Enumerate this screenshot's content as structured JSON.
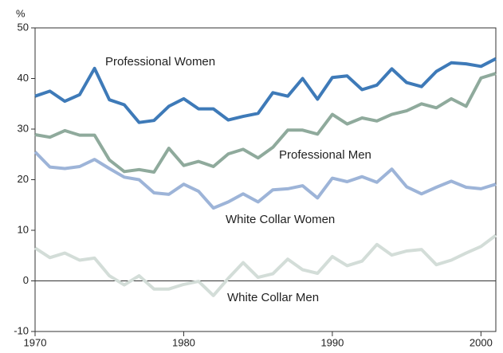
{
  "chart_data": {
    "type": "line",
    "ylabel": "%",
    "x": [
      1970,
      1971,
      1972,
      1973,
      1974,
      1975,
      1976,
      1977,
      1978,
      1979,
      1980,
      1981,
      1982,
      1983,
      1984,
      1985,
      1986,
      1987,
      1988,
      1989,
      1990,
      1991,
      1992,
      1993,
      1994,
      1995,
      1996,
      1997,
      1998,
      1999,
      2000,
      2001
    ],
    "series": [
      {
        "name": "Professional Women",
        "color": "#3e7ab8",
        "values": [
          36.5,
          37.5,
          35.5,
          36.8,
          42,
          35.8,
          34.8,
          31.3,
          31.7,
          34.5,
          36,
          34,
          34,
          31.8,
          32.5,
          33.1,
          37.2,
          36.5,
          40,
          35.9,
          40.2,
          40.5,
          37.8,
          38.7,
          41.9,
          39.2,
          38.4,
          41.4,
          43.1,
          42.9,
          42.4,
          43.9
        ]
      },
      {
        "name": "Professional Men",
        "color": "#8faa9c",
        "values": [
          28.9,
          28.4,
          29.7,
          28.8,
          28.8,
          23.9,
          21.6,
          22,
          21.5,
          26.2,
          22.8,
          23.6,
          22.6,
          25.1,
          26,
          24.3,
          26.4,
          29.8,
          29.8,
          29,
          32.9,
          31,
          32.2,
          31.6,
          32.9,
          33.6,
          35,
          34.2,
          36,
          34.5,
          40.1,
          41
        ]
      },
      {
        "name": "White Collar Women",
        "color": "#9db4d8",
        "values": [
          25.5,
          22.5,
          22.2,
          22.6,
          24,
          22.2,
          20.5,
          20,
          17.4,
          17.1,
          19.1,
          17.7,
          14.4,
          15.6,
          17.2,
          15.6,
          18,
          18.2,
          18.8,
          16.4,
          20.3,
          19.6,
          20.6,
          19.5,
          22.1,
          18.6,
          17.2,
          18.5,
          19.7,
          18.5,
          18.2,
          19.1
        ]
      },
      {
        "name": "White Collar Men",
        "color": "#d3ddd8",
        "values": [
          6.5,
          4.6,
          5.5,
          4.1,
          4.5,
          1,
          -0.8,
          1,
          -1.6,
          -1.6,
          -0.7,
          -0.1,
          -2.9,
          0.5,
          3.6,
          0.7,
          1.4,
          4.3,
          2.2,
          1.5,
          4.8,
          3,
          3.9,
          7.2,
          5.1,
          5.9,
          6.2,
          3.2,
          4.1,
          5.5,
          6.8,
          9
        ]
      }
    ],
    "xlim": [
      1970,
      2001
    ],
    "xticks": [
      1970,
      1980,
      1990,
      2000
    ],
    "ylim": [
      -10,
      50
    ],
    "yticks": [
      -10,
      0,
      10,
      20,
      30,
      40,
      50
    ]
  }
}
